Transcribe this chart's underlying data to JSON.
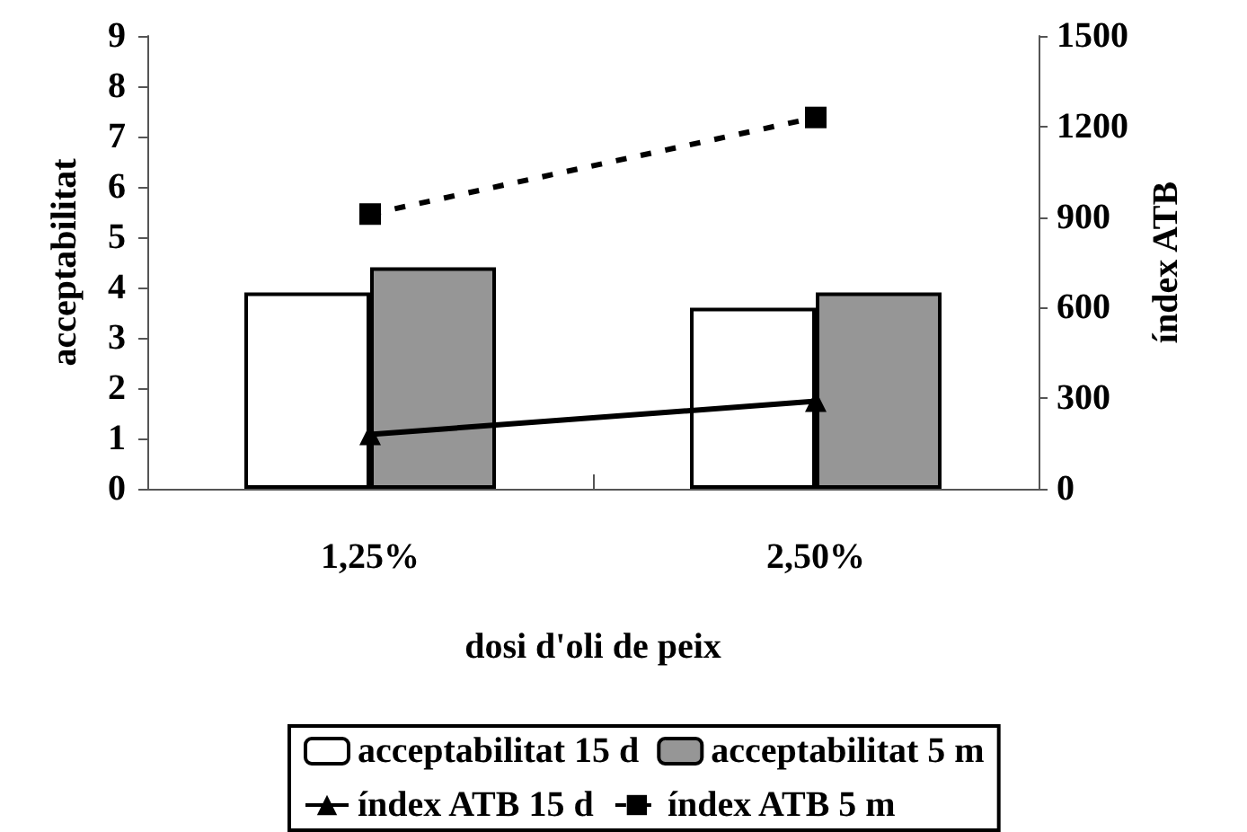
{
  "chart_data": {
    "type": "bar",
    "xlabel": "dosi d'oli de peix",
    "ylabel": "acceptabilitat",
    "y2label": "índex ATB",
    "categories": [
      "1,25%",
      "2,50%"
    ],
    "series": [
      {
        "name": "acceptabilitat 15 d",
        "color": "#ffffff",
        "values": [
          3.9,
          3.6
        ]
      },
      {
        "name": "acceptabilitat 5 m",
        "color": "#969696",
        "values": [
          4.4,
          3.9
        ]
      },
      {
        "name": "índex ATB 15 d",
        "type": "line",
        "axis": "y2",
        "color": "#000000",
        "marker": "triangle",
        "line_style": "solid",
        "values": [
          180,
          290
        ]
      },
      {
        "name": "índex ATB 5 m",
        "type": "line",
        "axis": "y2",
        "color": "#000000",
        "marker": "square",
        "line_style": "dashed",
        "values": [
          910,
          1230
        ]
      }
    ],
    "ylim": [
      0,
      9
    ],
    "yticks": [
      0,
      1,
      2,
      3,
      4,
      5,
      6,
      7,
      8,
      9
    ],
    "y2lim": [
      0,
      1500
    ],
    "y2ticks": [
      0,
      300,
      600,
      900,
      1200,
      1500
    ],
    "grid": false,
    "legend": "bottom"
  }
}
